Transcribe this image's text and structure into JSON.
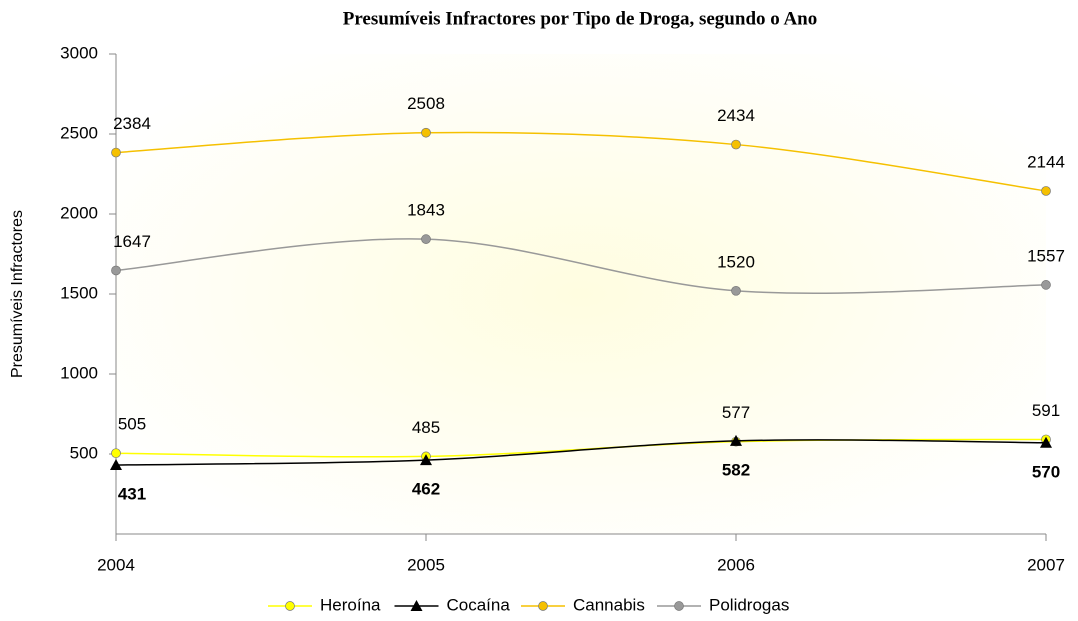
{
  "chart_data": {
    "type": "line",
    "title": "Presumíveis Infractores por Tipo de Droga, segundo o Ano",
    "y_label": "Presumíveis Infractores",
    "x": [
      2004,
      2005,
      2006,
      2007
    ],
    "xlim": [
      2004,
      2007
    ],
    "xticks": [
      2004,
      2005,
      2006,
      2007
    ],
    "ylim": [
      0,
      3000
    ],
    "yticks": [
      500,
      1000,
      1500,
      2000,
      2500,
      3000
    ],
    "grid": false,
    "legend": "bottom",
    "series": [
      {
        "name": "Heroína",
        "color": "#ffff00",
        "marker": "circle",
        "values": [
          505,
          485,
          577,
          591
        ]
      },
      {
        "name": "Cocaína",
        "color": "#000000",
        "marker": "triangle",
        "label_position": "below",
        "values": [
          431,
          462,
          582,
          570
        ]
      },
      {
        "name": "Cannabis",
        "color": "#f5c000",
        "marker": "circle",
        "values": [
          2384,
          2508,
          2434,
          2144
        ]
      },
      {
        "name": "Polidrogas",
        "color": "#999999",
        "marker": "circle",
        "values": [
          1647,
          1843,
          1520,
          1557
        ]
      }
    ]
  }
}
